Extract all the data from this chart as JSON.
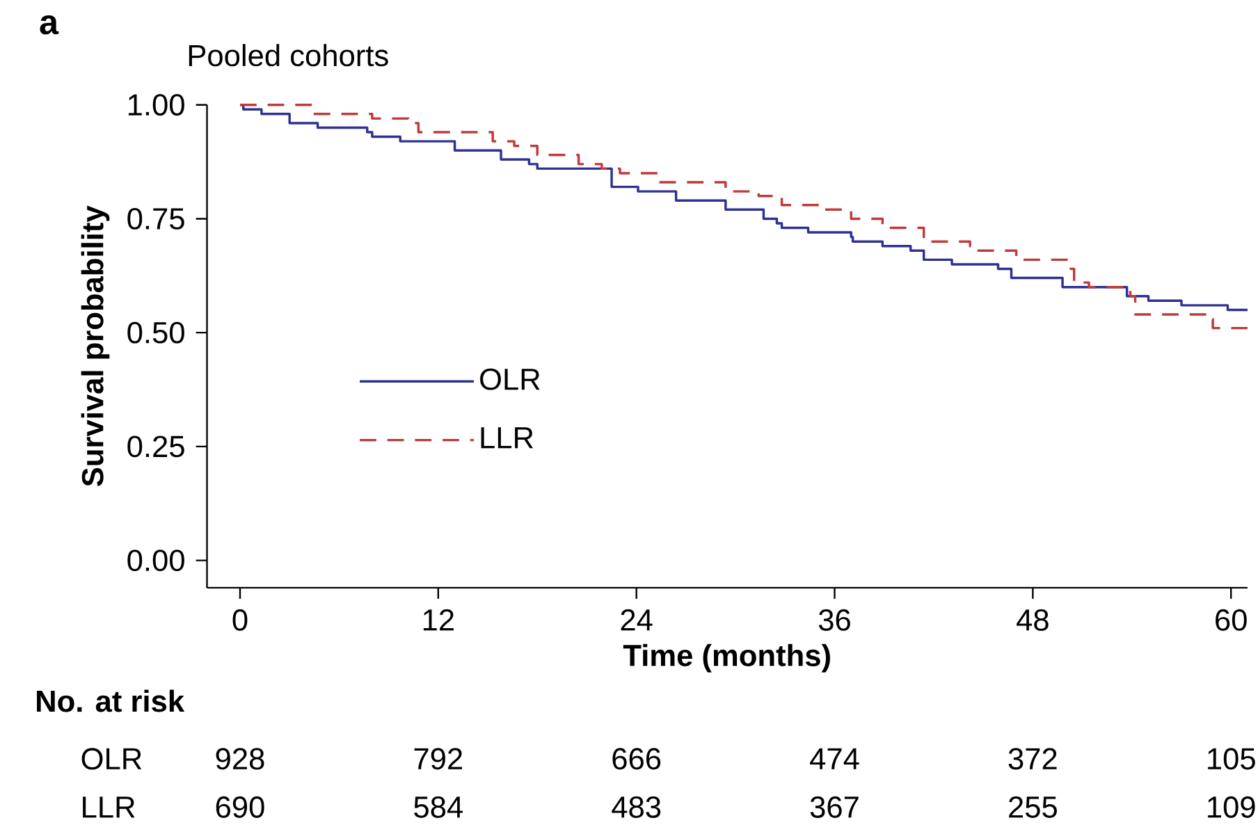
{
  "chart_data": {
    "type": "step",
    "title": "Pooled cohorts",
    "xlabel": "Time (months)",
    "ylabel": "Survival probability",
    "xlim": [
      -2,
      61
    ],
    "ylim": [
      -0.06,
      1.0
    ],
    "xticks": [
      0,
      12,
      24,
      36,
      48,
      60
    ],
    "yticks": [
      {
        "value": 0,
        "label": "0.00"
      },
      {
        "value": 0.25,
        "label": "0.25"
      },
      {
        "value": 0.5,
        "label": "0.50"
      },
      {
        "value": 0.75,
        "label": "0.75"
      },
      {
        "value": 1,
        "label": "1.00"
      }
    ],
    "grid": false,
    "legend": "left",
    "series": [
      {
        "name": "OLR",
        "color": "#2e3192",
        "line_style": "solid",
        "x": [
          0,
          0.2,
          1.3,
          3,
          4.7,
          5.5,
          7.7,
          8,
          9.7,
          13,
          15.8,
          17.5,
          18,
          19.7,
          22.5,
          24.1,
          26.4,
          29.4,
          31.7,
          32.5,
          32.8,
          34.4,
          37,
          37.1,
          38.9,
          40.6,
          41.4,
          43.1,
          45.9,
          46.7,
          48.9,
          49.8,
          53.5,
          53.7,
          54.8,
          55,
          57,
          59.8,
          61
        ],
        "values": [
          1.0,
          0.99,
          0.98,
          0.96,
          0.95,
          0.95,
          0.94,
          0.93,
          0.92,
          0.9,
          0.88,
          0.87,
          0.86,
          0.86,
          0.82,
          0.81,
          0.79,
          0.77,
          0.75,
          0.74,
          0.73,
          0.72,
          0.71,
          0.7,
          0.69,
          0.68,
          0.66,
          0.65,
          0.64,
          0.62,
          0.62,
          0.6,
          0.6,
          0.58,
          0.58,
          0.57,
          0.56,
          0.55,
          0.55
        ]
      },
      {
        "name": "LLR",
        "color": "#c0393b",
        "line_style": "dashed",
        "x": [
          0,
          4.4,
          6.9,
          8,
          10.2,
          10.8,
          15.3,
          16.6,
          18,
          20.3,
          20.5,
          21.9,
          23,
          25.3,
          29.4,
          31.4,
          32.8,
          35.3,
          37,
          38.9,
          41.4,
          44.2,
          44.6,
          47,
          50.3,
          50.5,
          51.4,
          53.9,
          54.2,
          58.7,
          58.9,
          61
        ],
        "values": [
          1.0,
          0.98,
          0.98,
          0.97,
          0.96,
          0.94,
          0.92,
          0.91,
          0.89,
          0.89,
          0.87,
          0.86,
          0.85,
          0.83,
          0.81,
          0.8,
          0.78,
          0.77,
          0.75,
          0.73,
          0.7,
          0.69,
          0.68,
          0.66,
          0.64,
          0.61,
          0.6,
          0.58,
          0.54,
          0.53,
          0.51,
          0.51
        ]
      }
    ],
    "annotations": [
      "a",
      "No. at risk",
      "OLR",
      "928",
      "792",
      "666",
      "474",
      "372",
      "105",
      "LLR",
      "690",
      "584",
      "483",
      "367",
      "255",
      "109"
    ]
  }
}
